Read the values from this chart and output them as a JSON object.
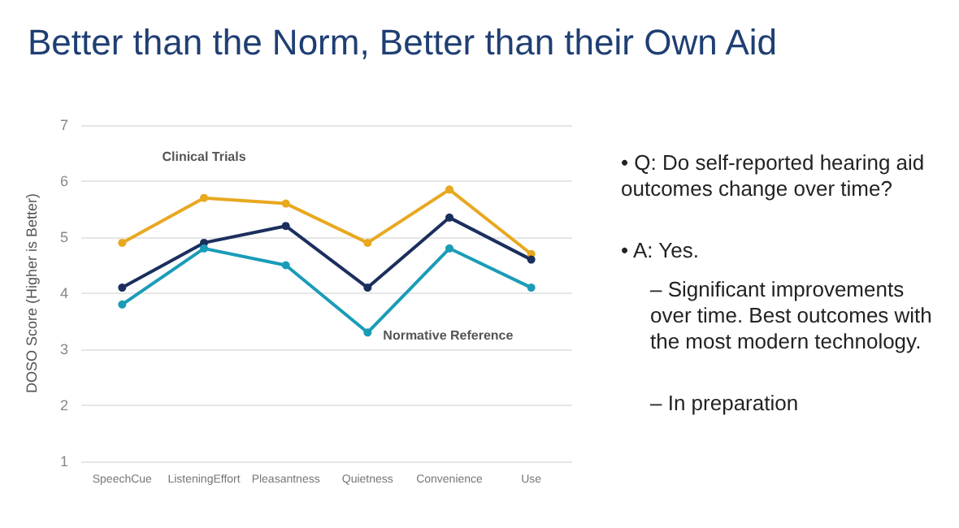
{
  "chart_data": {
    "type": "line",
    "title": "Better than the Norm, Better than their Own Aid",
    "ylabel": "DOSO Score (Higher is Better)",
    "categories": [
      "SpeechCue",
      "ListeningEffort",
      "Pleasantness",
      "Quietness",
      "Convenience",
      "Use"
    ],
    "series": [
      {
        "name": "Clinical Trials",
        "color": "#e8a820",
        "values": [
          4.9,
          5.7,
          5.6,
          4.9,
          5.85,
          4.7
        ]
      },
      {
        "color": "#1b2f5e",
        "values": [
          4.1,
          4.9,
          5.2,
          4.1,
          5.35,
          4.6
        ]
      },
      {
        "name": "Normative Reference",
        "color": "#1a9cb8",
        "values": [
          3.8,
          4.8,
          4.5,
          3.3,
          4.8,
          4.1
        ]
      }
    ],
    "ylim": [
      1,
      7
    ],
    "yticks": [
      1,
      2,
      3,
      4,
      5,
      6,
      7
    ],
    "grid": "y",
    "legend": false,
    "marker": "circle",
    "line_style": "solid",
    "annotations": [
      "• Q: Do self-reported hearing aid outcomes change over time?",
      "• A: Yes.",
      "– Significant improvements over time. Best outcomes with the most modern technology.",
      "– In preparation"
    ]
  }
}
